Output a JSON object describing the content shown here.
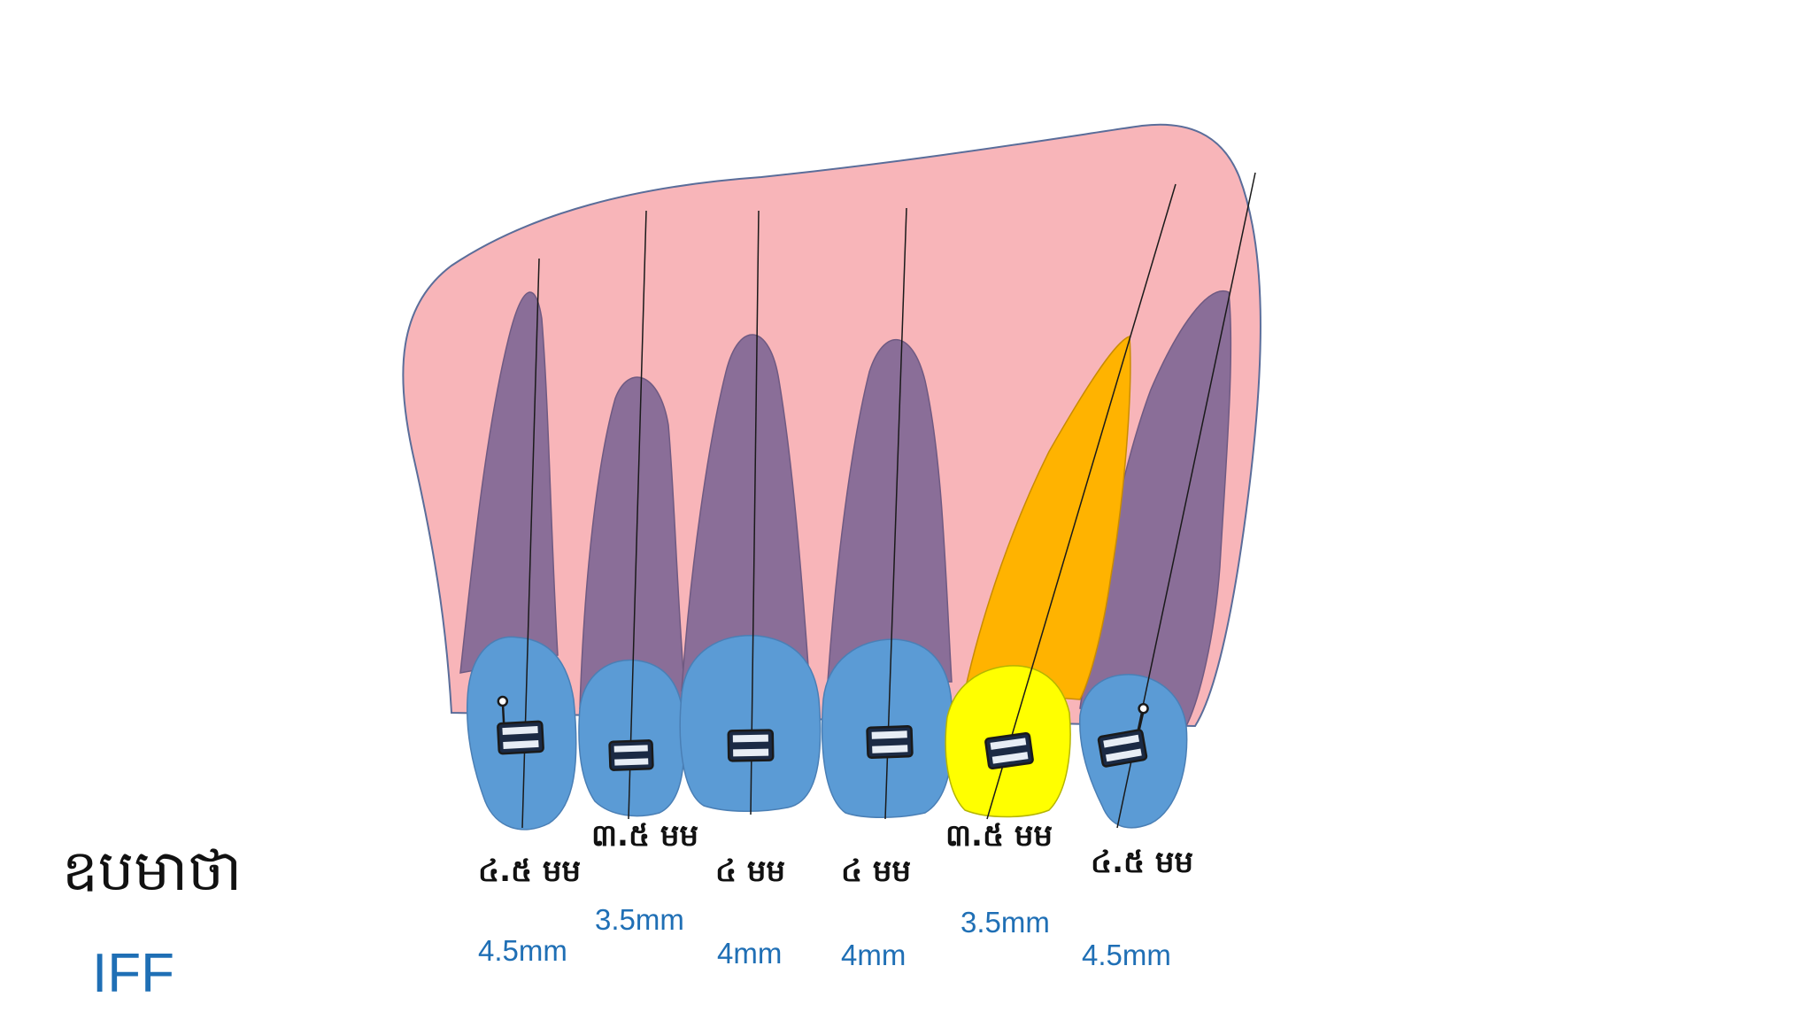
{
  "title": "ឧបមាថា",
  "subtitle": "IFF",
  "colors": {
    "gum": "#f8b5b9",
    "gum_stroke": "#5a6d9a",
    "root": "#8a6e98",
    "crown": "#5b9bd5",
    "highlight_root": "#ffb300",
    "highlight_crown": "#ffff00",
    "label_blue": "#1f6fb5"
  },
  "teeth": [
    {
      "khmer": "៤.៥ មម",
      "mm": "4.5mm",
      "highlighted": false
    },
    {
      "khmer": "៣.៥ មម",
      "mm": "3.5mm",
      "highlighted": false
    },
    {
      "khmer": "៤ មម",
      "mm": "4mm",
      "highlighted": false
    },
    {
      "khmer": "៤ មម",
      "mm": "4mm",
      "highlighted": false
    },
    {
      "khmer": "៣.៥ មម",
      "mm": "3.5mm",
      "highlighted": true
    },
    {
      "khmer": "៤.៥ មម",
      "mm": "4.5mm",
      "highlighted": false
    }
  ]
}
